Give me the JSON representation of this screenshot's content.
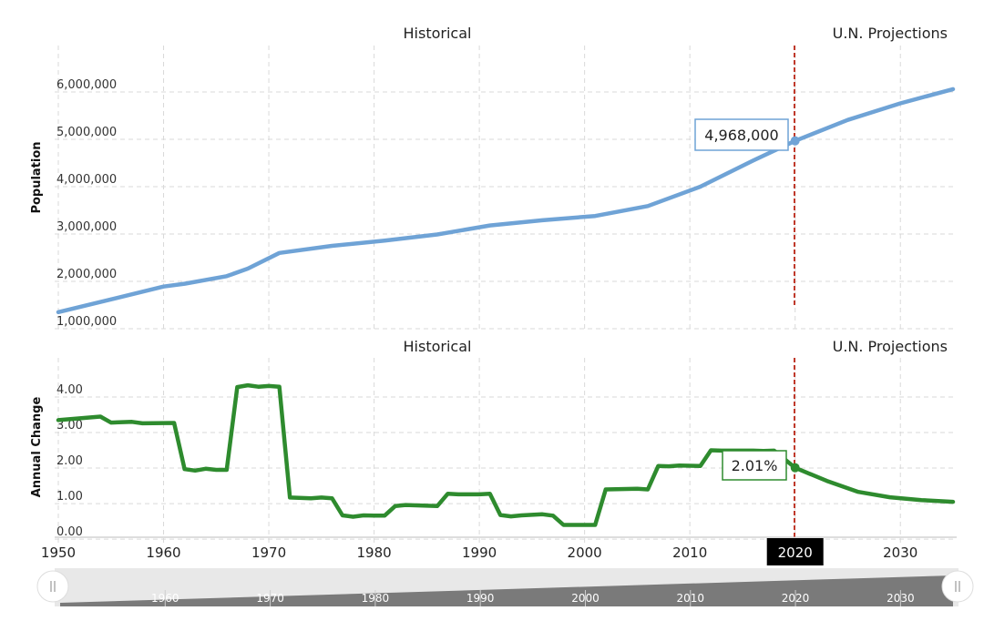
{
  "chart_data": [
    {
      "type": "line",
      "label_left": "Historical",
      "label_right": "U.N. Projections",
      "ylabel": "Population",
      "ylim": [
        1000000,
        6500000
      ],
      "yticks": [
        "1,000,000",
        "2,000,000",
        "3,000,000",
        "4,000,000",
        "5,000,000",
        "6,000,000"
      ],
      "ytick_values": [
        1000000,
        2000000,
        3000000,
        4000000,
        5000000,
        6000000
      ],
      "split_year": 2020,
      "annotation": "4,968,000",
      "line_color": "#6fa3d6",
      "x": [
        1950,
        1955,
        1960,
        1962,
        1966,
        1968,
        1971,
        1976,
        1981,
        1986,
        1991,
        1996,
        2001,
        2006,
        2011,
        2016,
        2020,
        2025,
        2030,
        2035
      ],
      "values": [
        1350000,
        1620000,
        1890000,
        1950000,
        2110000,
        2270000,
        2600000,
        2750000,
        2860000,
        2990000,
        3180000,
        3290000,
        3380000,
        3590000,
        4000000,
        4550000,
        4968000,
        5410000,
        5760000,
        6060000
      ]
    },
    {
      "type": "line",
      "label_left": "Historical",
      "label_right": "U.N. Projections",
      "ylabel": "Annual Change",
      "ylim": [
        -0.1,
        5.0
      ],
      "yticks": [
        "0.00",
        "1.00",
        "2.00",
        "3.00",
        "4.00"
      ],
      "ytick_values": [
        0,
        1,
        2,
        3,
        4
      ],
      "split_year": 2020,
      "annotation": "2.01%",
      "line_color": "#2e8b2e",
      "x": [
        1950,
        1954,
        1955,
        1957,
        1958,
        1961,
        1962,
        1963,
        1964,
        1965,
        1966,
        1967,
        1968,
        1969,
        1970,
        1971,
        1972,
        1974,
        1975,
        1976,
        1977,
        1978,
        1979,
        1980,
        1981,
        1982,
        1983,
        1986,
        1987,
        1988,
        1990,
        1991,
        1992,
        1993,
        1994,
        1996,
        1997,
        1998,
        2000,
        2001,
        2002,
        2005,
        2006,
        2007,
        2008,
        2009,
        2011,
        2012,
        2013,
        2016,
        2017,
        2018,
        2020,
        2023,
        2026,
        2029,
        2032,
        2035
      ],
      "values": [
        3.35,
        3.45,
        3.28,
        3.3,
        3.26,
        3.27,
        1.97,
        1.93,
        1.98,
        1.95,
        1.95,
        4.28,
        4.33,
        4.29,
        4.31,
        4.29,
        1.17,
        1.15,
        1.17,
        1.15,
        0.67,
        0.63,
        0.67,
        0.66,
        0.66,
        0.93,
        0.96,
        0.93,
        1.28,
        1.26,
        1.26,
        1.28,
        0.68,
        0.64,
        0.67,
        0.7,
        0.66,
        0.4,
        0.4,
        0.4,
        1.4,
        1.42,
        1.4,
        2.06,
        2.05,
        2.07,
        2.06,
        2.5,
        2.49,
        2.49,
        2.48,
        2.49,
        2.01,
        1.64,
        1.33,
        1.18,
        1.1,
        1.05
      ]
    }
  ],
  "x_axis": {
    "range": [
      1950,
      2035
    ],
    "ticks": [
      "1950",
      "1960",
      "1970",
      "1980",
      "1990",
      "2000",
      "2010",
      "2020",
      "2030"
    ],
    "tick_values": [
      1950,
      1960,
      1970,
      1980,
      1990,
      2000,
      2010,
      2020,
      2030
    ],
    "highlight": "2020"
  },
  "navigator": {
    "ticks": [
      "1960",
      "1970",
      "1980",
      "1990",
      "2000",
      "2010",
      "2020",
      "2030"
    ],
    "tick_values": [
      1960,
      1970,
      1980,
      1990,
      2000,
      2010,
      2020,
      2030
    ],
    "left_handle_icon": "grip-icon",
    "right_handle_icon": "grip-icon"
  }
}
